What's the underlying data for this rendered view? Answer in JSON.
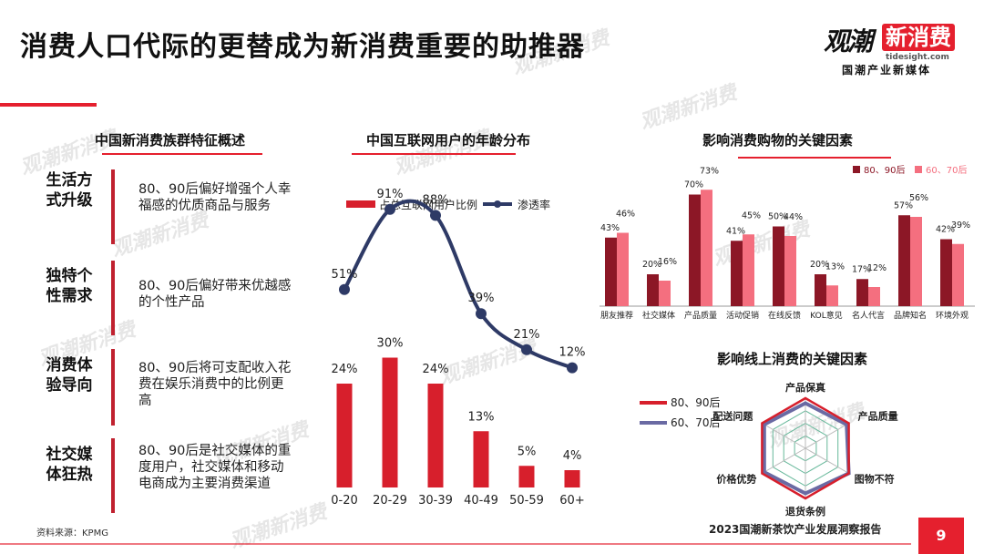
{
  "page": {
    "title": "消费人口代际的更替成为新消费重要的助推器",
    "brand": {
      "name_part1": "观潮",
      "name_part2": "新消费",
      "site": "tidesight.com",
      "tagline": "国潮产业新媒体"
    },
    "watermark": "观潮新消费",
    "source": "资料来源：KPMG",
    "report_title": "2023国潮新茶饮产业发展洞察报告",
    "page_number": "9"
  },
  "features": {
    "title": "中国新消费族群特征概述",
    "items": [
      {
        "category": "生活方式升级",
        "description": "80、90后偏好增强个人幸福感的优质商品与服务"
      },
      {
        "category": "独特个性需求",
        "description": "80、90后偏好带来优越感的个性产品"
      },
      {
        "category": "消费体验导向",
        "description": "80、90后将可支配收入花费在娱乐消费中的比例更高"
      },
      {
        "category": "社交媒体狂热",
        "description": "80、90后是社交媒体的重度用户，社交媒体和移动电商成为主要消费渠道"
      }
    ]
  },
  "chart_data": [
    {
      "type": "bar+line",
      "title": "中国互联网用户的年龄分布",
      "categories": [
        "0-20",
        "20-29",
        "30-39",
        "40-49",
        "50-59",
        "60+"
      ],
      "series": [
        {
          "name": "占总互联网用户比例",
          "type": "bar",
          "color": "#d71f2c",
          "values": [
            24,
            30,
            24,
            13,
            5,
            4
          ],
          "labels": [
            "24%",
            "30%",
            "24%",
            "13%",
            "5%",
            "4%"
          ]
        },
        {
          "name": "渗透率",
          "type": "line",
          "color": "#2e3a66",
          "values": [
            51,
            91,
            88,
            39,
            21,
            12
          ],
          "labels": [
            "51%",
            "91%",
            "88%",
            "39%",
            "21%",
            "12%"
          ]
        }
      ],
      "bar_ylim": [
        0,
        40
      ],
      "line_ylim": [
        0,
        100
      ]
    },
    {
      "type": "bar",
      "title": "影响消费购物的关键因素",
      "categories": [
        "朋友推荐",
        "社交媒体",
        "产品质量",
        "活动促销",
        "在线反馈",
        "KOL意见",
        "名人代言",
        "品牌知名",
        "环境外观"
      ],
      "series": [
        {
          "name": "80、90后",
          "color": "#8c1726",
          "values": [
            43,
            20,
            70,
            41,
            50,
            20,
            17,
            57,
            42
          ],
          "labels": [
            "43%",
            "20%",
            "70%",
            "41%",
            "50%",
            "20%",
            "17%",
            "57%",
            "42%"
          ]
        },
        {
          "name": "60、70后",
          "color": "#f46f7f",
          "values": [
            46,
            16,
            73,
            45,
            44,
            13,
            12,
            56,
            39
          ],
          "labels": [
            "46%",
            "16%",
            "73%",
            "45%",
            "44%",
            "13%",
            "12%",
            "56%",
            "39%"
          ]
        }
      ],
      "ylim": [
        0,
        80
      ],
      "legend": "top-right"
    },
    {
      "type": "radar",
      "title": "影响线上消费的关键因素",
      "axes": [
        "产品保真",
        "产品质量",
        "图物不符",
        "退货条例",
        "价格优势",
        "配送问题"
      ],
      "series": [
        {
          "name": "80、90后",
          "color": "#d71f2c",
          "values": [
            1.0,
            1.0,
            1.0,
            1.0,
            1.0,
            1.0
          ]
        },
        {
          "name": "60、70后",
          "color": "#6a6aa3",
          "values": [
            0.9,
            0.95,
            1.0,
            0.9,
            0.95,
            0.95
          ]
        }
      ],
      "legend": "left"
    }
  ]
}
